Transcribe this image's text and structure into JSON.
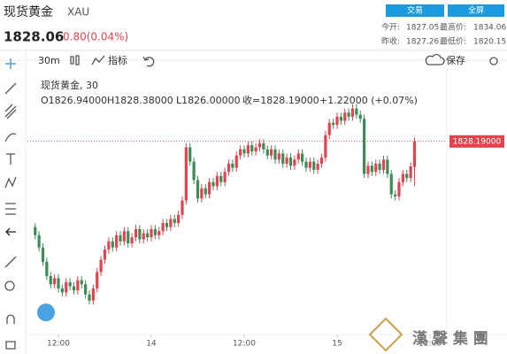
{
  "header": {
    "name": "现货黄金",
    "symbol": "XAU",
    "price": "1828.06",
    "change": "0.80(0.04%)",
    "trade_button": "交易",
    "fullscreen_button": "全屏",
    "stats": [
      [
        "今开:",
        "1827.05"
      ],
      [
        "最高价:",
        "1834.06"
      ],
      [
        "昨收:",
        "1827.26"
      ],
      [
        "最低价:",
        "1820.15"
      ]
    ]
  },
  "toolbar": {
    "interval": "30m",
    "indicators": "指标",
    "save": "保存"
  },
  "legend": {
    "title": "现货黄金, 30",
    "open": "O1826.94000",
    "high": "H1828.38000",
    "low": "L1826.00000",
    "close": "收=1828.19000",
    "change": "+1.22000 (+0.07%)"
  },
  "watermark": "漢 聲 集 團",
  "chart_data": {
    "type": "candlestick",
    "up_color": "#e0454f",
    "down_color": "#3d8b57",
    "open": [
      1824.0,
      1823.6,
      1823.0,
      1822.3,
      1821.6,
      1821.2,
      1821.5,
      1821.0,
      1820.8,
      1821.3,
      1821.1,
      1820.9,
      1821.4,
      1821.2,
      1820.7,
      1820.4,
      1821.0,
      1821.8,
      1822.4,
      1822.9,
      1823.3,
      1823.0,
      1823.6,
      1823.3,
      1823.8,
      1823.2,
      1823.5,
      1823.9,
      1823.4,
      1823.7,
      1823.5,
      1823.9,
      1823.6,
      1823.8,
      1824.2,
      1824.0,
      1824.4,
      1824.2,
      1824.6,
      1825.3,
      1827.9,
      1827.2,
      1826.3,
      1825.4,
      1825.9,
      1825.6,
      1826.2,
      1826.0,
      1826.5,
      1826.2,
      1826.7,
      1827.1,
      1826.9,
      1827.5,
      1827.8,
      1827.6,
      1828.0,
      1827.7,
      1827.9,
      1828.1,
      1827.8,
      1827.5,
      1827.8,
      1827.3,
      1827.6,
      1827.1,
      1827.4,
      1827.0,
      1827.3,
      1827.6,
      1827.2,
      1826.9,
      1827.2,
      1826.8,
      1827.1,
      1827.4,
      1828.5,
      1829.1,
      1829.0,
      1829.4,
      1829.2,
      1829.6,
      1829.4,
      1829.8,
      1829.5,
      1829.3,
      1826.6,
      1827.0,
      1826.7,
      1827.1,
      1826.8,
      1827.3,
      1826.6,
      1825.6,
      1825.5,
      1826.2,
      1826.6,
      1826.4,
      1826.94
    ],
    "high": [
      1824.2,
      1823.8,
      1823.2,
      1822.5,
      1821.8,
      1821.7,
      1821.7,
      1821.2,
      1821.5,
      1821.5,
      1821.3,
      1821.6,
      1821.6,
      1821.4,
      1820.9,
      1821.2,
      1822.0,
      1822.6,
      1823.1,
      1823.5,
      1823.5,
      1823.8,
      1823.8,
      1824.0,
      1824.0,
      1823.7,
      1824.1,
      1824.1,
      1823.9,
      1823.9,
      1824.1,
      1824.1,
      1824.0,
      1824.4,
      1824.4,
      1824.6,
      1824.6,
      1824.8,
      1825.5,
      1828.1,
      1828.1,
      1827.4,
      1826.5,
      1826.1,
      1826.1,
      1826.4,
      1826.4,
      1826.7,
      1826.7,
      1826.9,
      1827.3,
      1827.3,
      1827.7,
      1828.0,
      1828.0,
      1828.2,
      1828.2,
      1828.1,
      1828.3,
      1828.3,
      1828.0,
      1828.0,
      1828.0,
      1827.8,
      1827.8,
      1827.6,
      1827.6,
      1827.5,
      1827.8,
      1827.8,
      1827.4,
      1827.4,
      1827.4,
      1827.3,
      1827.6,
      1828.7,
      1829.3,
      1829.3,
      1829.6,
      1829.6,
      1829.8,
      1829.8,
      1830.0,
      1830.0,
      1829.7,
      1829.5,
      1827.2,
      1827.2,
      1827.3,
      1827.3,
      1827.5,
      1827.5,
      1826.8,
      1825.8,
      1826.4,
      1826.8,
      1826.8,
      1827.17,
      1828.38
    ],
    "low": [
      1823.4,
      1822.8,
      1822.1,
      1821.4,
      1821.0,
      1821.0,
      1820.8,
      1820.6,
      1820.6,
      1820.9,
      1820.7,
      1820.7,
      1821.0,
      1820.5,
      1820.2,
      1820.2,
      1820.8,
      1821.6,
      1822.2,
      1822.7,
      1822.8,
      1822.8,
      1823.1,
      1823.1,
      1823.0,
      1823.0,
      1823.3,
      1823.2,
      1823.2,
      1823.3,
      1823.3,
      1823.4,
      1823.4,
      1823.6,
      1823.8,
      1823.8,
      1824.0,
      1824.0,
      1824.4,
      1825.1,
      1827.0,
      1826.1,
      1825.2,
      1825.2,
      1825.4,
      1825.4,
      1825.8,
      1825.8,
      1826.0,
      1826.0,
      1826.5,
      1826.7,
      1826.7,
      1827.3,
      1827.4,
      1827.4,
      1827.5,
      1827.5,
      1827.7,
      1827.6,
      1827.3,
      1827.3,
      1827.1,
      1827.1,
      1826.9,
      1826.9,
      1826.8,
      1826.8,
      1827.1,
      1827.0,
      1826.7,
      1826.7,
      1826.6,
      1826.6,
      1826.9,
      1827.2,
      1828.3,
      1828.8,
      1828.8,
      1829.0,
      1829.0,
      1829.2,
      1829.2,
      1829.3,
      1829.1,
      1826.4,
      1826.4,
      1826.5,
      1826.5,
      1826.6,
      1826.6,
      1826.4,
      1825.4,
      1825.3,
      1825.3,
      1826.0,
      1826.2,
      1826.2,
      1826.0
    ],
    "close": [
      1823.6,
      1823.0,
      1822.3,
      1821.6,
      1821.2,
      1821.5,
      1821.0,
      1820.8,
      1821.3,
      1821.1,
      1820.9,
      1821.4,
      1821.2,
      1820.7,
      1820.4,
      1821.0,
      1821.8,
      1822.4,
      1822.9,
      1823.3,
      1823.0,
      1823.6,
      1823.3,
      1823.8,
      1823.2,
      1823.5,
      1823.9,
      1823.4,
      1823.7,
      1823.5,
      1823.9,
      1823.6,
      1823.8,
      1824.2,
      1824.0,
      1824.4,
      1824.2,
      1824.6,
      1825.3,
      1827.9,
      1827.2,
      1826.3,
      1825.4,
      1825.9,
      1825.6,
      1826.2,
      1826.0,
      1826.5,
      1826.2,
      1826.7,
      1827.1,
      1826.9,
      1827.5,
      1827.8,
      1827.6,
      1828.0,
      1827.7,
      1827.9,
      1828.1,
      1827.8,
      1827.5,
      1827.8,
      1827.3,
      1827.6,
      1827.1,
      1827.4,
      1827.0,
      1827.3,
      1827.6,
      1827.2,
      1826.9,
      1827.2,
      1826.8,
      1827.1,
      1827.4,
      1828.5,
      1829.1,
      1829.0,
      1829.4,
      1829.2,
      1829.6,
      1829.4,
      1829.8,
      1829.5,
      1829.3,
      1826.6,
      1827.0,
      1826.7,
      1827.1,
      1826.8,
      1827.3,
      1826.6,
      1825.6,
      1825.5,
      1826.2,
      1826.6,
      1826.4,
      1826.97,
      1828.19
    ],
    "xlim": [
      -2,
      106
    ],
    "xticks": [
      {
        "value": 6,
        "label": "12:00"
      },
      {
        "value": 30,
        "label": "14"
      },
      {
        "value": 54,
        "label": "12:00"
      },
      {
        "value": 78,
        "label": "15"
      },
      {
        "value": 102,
        "label": "12:00"
      }
    ],
    "ylim": [
      1819.0,
      1831.3
    ],
    "last_price": {
      "value": 1828.19,
      "label": "1828.19000"
    },
    "last_price_color": "#e0454f"
  }
}
